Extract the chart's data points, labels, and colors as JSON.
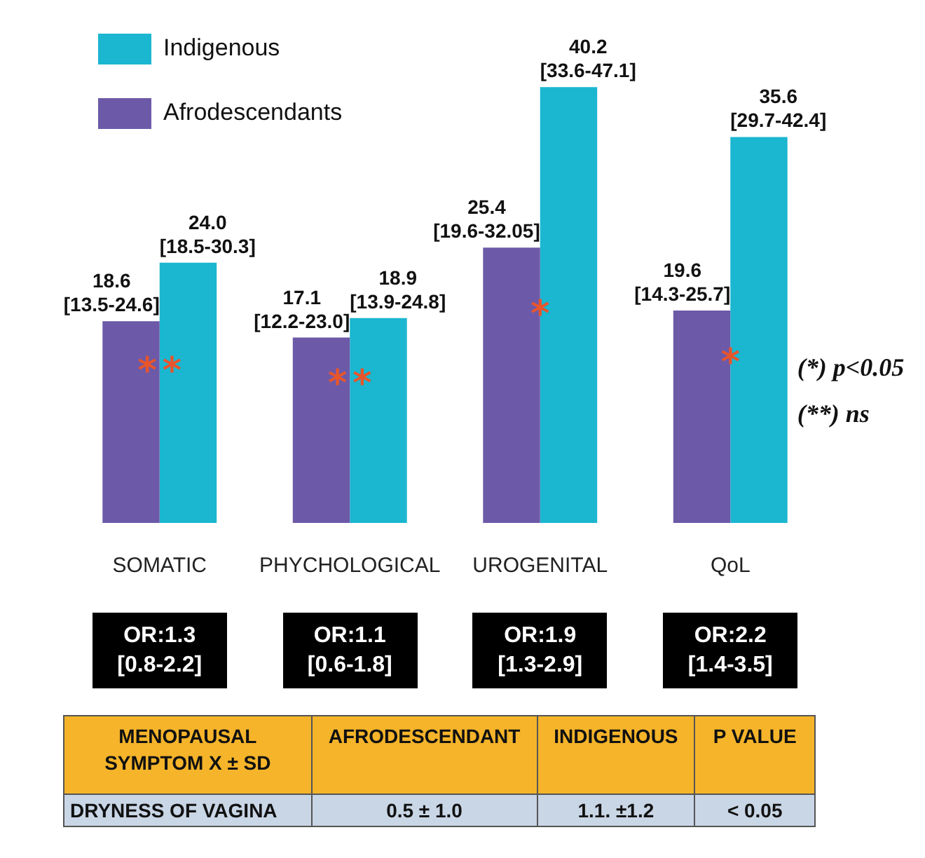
{
  "chart_data": [
    {
      "type": "bar",
      "categories": [
        "SOMATIC",
        "PHYCHOLOGICAL",
        "UROGENITAL",
        "QoL"
      ],
      "series": [
        {
          "name": "Afrodescendants",
          "color": "#6c5aa8",
          "values": [
            18.6,
            17.1,
            25.4,
            19.6
          ],
          "value_labels": [
            "18.6 [13.5-24.6]",
            "17.1 [12.2-23.0]",
            "25.4 [19.6-32.05]",
            "19.6 [14.3-25.7]"
          ]
        },
        {
          "name": "Indigenous",
          "color": "#1bb6d0",
          "values": [
            24.0,
            18.9,
            40.2,
            35.6
          ],
          "value_labels": [
            "24.0 [18.5-30.3]",
            "18.9 [13.9-24.8]",
            "40.2 [33.6-47.1]",
            "35.6 [29.7-42.4]"
          ]
        }
      ],
      "legend": "top left",
      "grid": false,
      "annotations": [
        {
          "text": "**",
          "x": "SOMATIC"
        },
        {
          "text": "**",
          "x": "PHYCHOLOGICAL"
        },
        {
          "text": "*",
          "x": "UROGENITAL"
        },
        {
          "text": "*",
          "x": "QoL"
        },
        "OR:1.3 [0.8-2.2]",
        "OR:1.1 [0.6-1.8]",
        "OR:1.9 [1.3-2.9]",
        "OR:2.2 [1.4-3.5]",
        "(*) p<0.05",
        "(**) ns"
      ]
    },
    {
      "type": "other",
      "categories": [
        "MENOPAUSAL SYMPTOM X ± SD",
        "AFRODESCENDANT",
        "INDIGENOUS",
        "P VALUE"
      ],
      "annotations": [
        "DRYNESS OF VAGINA",
        "0.5 ± 1.0",
        "1.1. ±1.2",
        "< 0.05"
      ]
    }
  ]
}
